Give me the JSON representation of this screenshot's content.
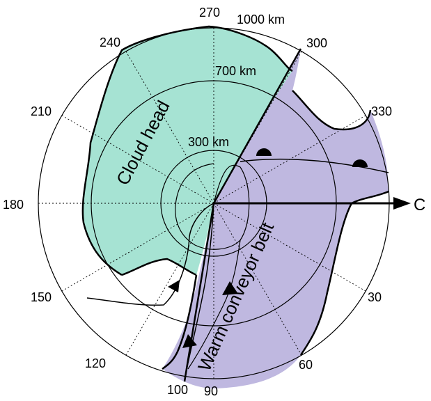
{
  "colors": {
    "cloud_head_fill": "#a6e3d3",
    "conveyor_fill": "#bfb8e0",
    "line": "#000000",
    "background": "#ffffff"
  },
  "azimuth_labels": {
    "a270": "270",
    "a300": "300",
    "a330": "330",
    "a240": "240",
    "a210": "210",
    "a180": "180",
    "a150": "150",
    "a120": "120",
    "a100": "100",
    "a90": "90",
    "a60": "60",
    "a30": "30"
  },
  "range_labels": {
    "r1000": "1000 km",
    "r700": "700 km",
    "r300": "300 km"
  },
  "feature_labels": {
    "cloud_head": "Cloud head",
    "warm_conveyor_belt": "Warm conveyor belt",
    "axis_c": "C"
  }
}
